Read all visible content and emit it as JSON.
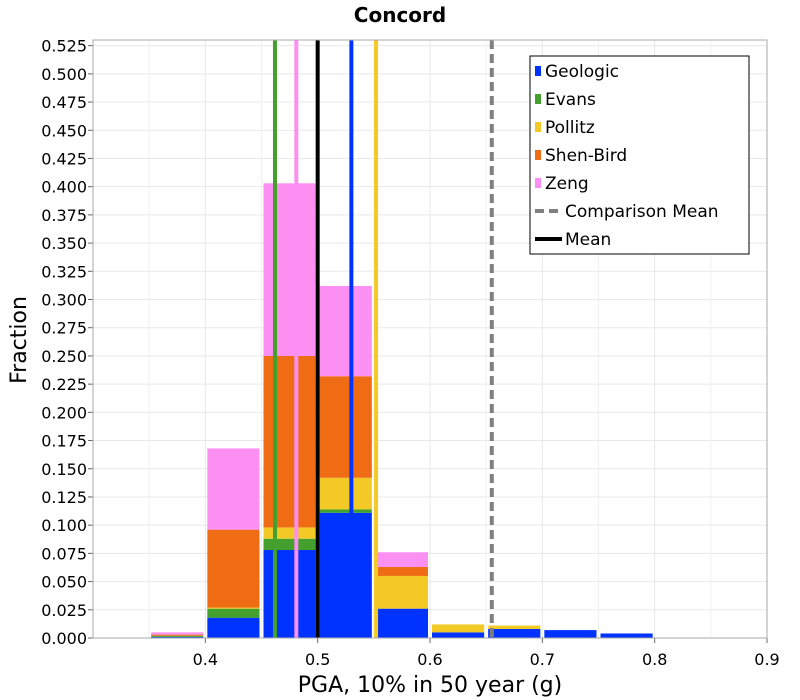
{
  "chart_data": {
    "type": "bar",
    "title": "Concord",
    "xlabel": "PGA, 10% in 50 year (g)",
    "ylabel": "Fraction",
    "xlim": [
      0.3,
      0.9
    ],
    "ylim": [
      0,
      0.53
    ],
    "xticks": [
      "0.4",
      "0.5",
      "0.6",
      "0.7",
      "0.8",
      "0.9"
    ],
    "xtick_values": [
      0.4,
      0.5,
      0.6,
      0.7,
      0.8,
      0.9
    ],
    "yticks": [
      "0.000",
      "0.025",
      "0.050",
      "0.075",
      "0.100",
      "0.125",
      "0.150",
      "0.175",
      "0.200",
      "0.225",
      "0.250",
      "0.275",
      "0.300",
      "0.325",
      "0.350",
      "0.375",
      "0.400",
      "0.425",
      "0.450",
      "0.475",
      "0.500",
      "0.525"
    ],
    "ytick_values": [
      0,
      0.025,
      0.05,
      0.075,
      0.1,
      0.125,
      0.15,
      0.175,
      0.2,
      0.225,
      0.25,
      0.275,
      0.3,
      0.325,
      0.35,
      0.375,
      0.4,
      0.425,
      0.45,
      0.475,
      0.5,
      0.525
    ],
    "grid": true,
    "legend_position": "top-right",
    "stacked": true,
    "bins": [
      {
        "from": 0.35,
        "to": 0.4
      },
      {
        "from": 0.4,
        "to": 0.45
      },
      {
        "from": 0.45,
        "to": 0.5
      },
      {
        "from": 0.5,
        "to": 0.55
      },
      {
        "from": 0.55,
        "to": 0.6
      },
      {
        "from": 0.6,
        "to": 0.65
      },
      {
        "from": 0.65,
        "to": 0.7
      },
      {
        "from": 0.7,
        "to": 0.75
      },
      {
        "from": 0.75,
        "to": 0.8
      }
    ],
    "series": [
      {
        "name": "Geologic",
        "color": "#0033ff",
        "values": [
          0.001,
          0.018,
          0.078,
          0.111,
          0.026,
          0.005,
          0.008,
          0.007,
          0.004
        ],
        "mean": 0.53
      },
      {
        "name": "Evans",
        "color": "#44a02c",
        "values": [
          0.001,
          0.008,
          0.01,
          0.003,
          0.0,
          0.0,
          0.0,
          0.0,
          0.0
        ],
        "mean": 0.462
      },
      {
        "name": "Pollitz",
        "color": "#f2c925",
        "values": [
          0.0,
          0.001,
          0.01,
          0.028,
          0.029,
          0.007,
          0.003,
          0.0,
          0.0
        ],
        "mean": 0.552
      },
      {
        "name": "Shen-Bird",
        "color": "#f06c14",
        "values": [
          0.001,
          0.069,
          0.152,
          0.09,
          0.008,
          0.0,
          0.0,
          0.0,
          0.0
        ],
        "mean": null
      },
      {
        "name": "Zeng",
        "color": "#fb8ff2",
        "values": [
          0.002,
          0.072,
          0.153,
          0.08,
          0.013,
          0.0,
          0.0,
          0.0,
          0.0
        ],
        "mean": 0.481
      }
    ],
    "reference_lines": [
      {
        "name": "Comparison Mean",
        "x": 0.655,
        "color": "#808080",
        "style": "dashed"
      },
      {
        "name": "Mean",
        "x": 0.5,
        "color": "#000000",
        "style": "solid"
      }
    ]
  }
}
